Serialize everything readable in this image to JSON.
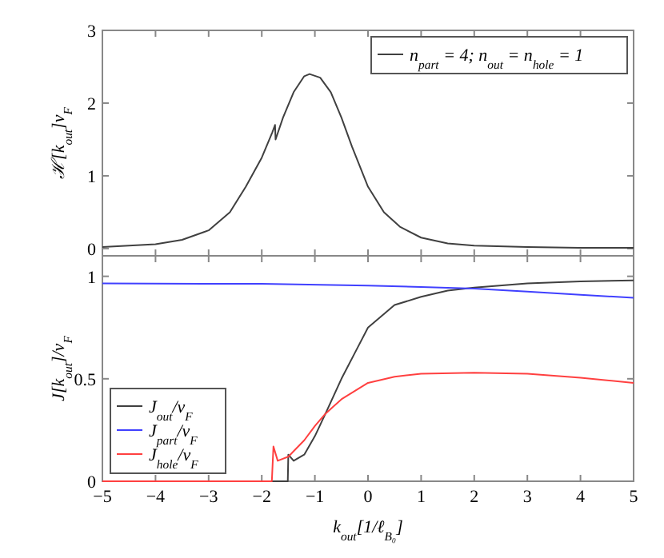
{
  "chart_data": [
    {
      "type": "line",
      "ylabel": "ℋ[k$_{out}$]v$_{F}$",
      "xlim": [
        -5,
        5
      ],
      "xticks": [
        -5,
        -4,
        -3,
        -2,
        -1,
        0,
        1,
        2,
        3,
        4,
        5
      ],
      "ylim": [
        -0.1,
        3
      ],
      "yticks": [
        0,
        1,
        2,
        3
      ],
      "tick_labels": "y",
      "legend": "top right",
      "grid": false,
      "series": [
        {
          "name": "n$_{part}$ = 4; n$_{out}$ = n$_{hole}$ = 1",
          "color": "#404040",
          "x": [
            -5,
            -4,
            -3.5,
            -3,
            -2.6,
            -2.3,
            -2,
            -1.8,
            -1.75,
            -1.74,
            -1.6,
            -1.4,
            -1.2,
            -1.1,
            -0.9,
            -0.7,
            -0.5,
            -0.3,
            0,
            0.3,
            0.6,
            1,
            1.5,
            2,
            3,
            4,
            5
          ],
          "values": [
            0.02,
            0.06,
            0.12,
            0.25,
            0.5,
            0.85,
            1.25,
            1.6,
            1.7,
            1.5,
            1.8,
            2.15,
            2.37,
            2.4,
            2.35,
            2.15,
            1.8,
            1.4,
            0.85,
            0.5,
            0.3,
            0.15,
            0.07,
            0.04,
            0.02,
            0.01,
            0.01
          ]
        }
      ]
    },
    {
      "type": "line",
      "xlabel": "k$_{out}$[1/ℓ$_{B₀}$]",
      "ylabel": "J[k$_{out}$]/v$_{F}$",
      "xlim": [
        -5,
        5
      ],
      "xticks": [
        -5,
        -4,
        -3,
        -2,
        -1,
        0,
        1,
        2,
        3,
        4,
        5
      ],
      "ylim": [
        0,
        1.1
      ],
      "yticks": [
        0,
        0.5,
        1
      ],
      "legend": "bottom left",
      "grid": false,
      "series": [
        {
          "name": "J$_{out}$/v$_{F}$",
          "color": "#404040",
          "x": [
            -5,
            -1.51,
            -1.5,
            -1.4,
            -1.2,
            -1,
            -0.8,
            -0.5,
            -0.2,
            0,
            0.5,
            1,
            1.5,
            2,
            3,
            4,
            5
          ],
          "values": [
            0,
            0,
            0.13,
            0.1,
            0.13,
            0.22,
            0.33,
            0.5,
            0.65,
            0.75,
            0.86,
            0.9,
            0.93,
            0.945,
            0.965,
            0.975,
            0.98
          ]
        },
        {
          "name": "J$_{part}$/v$_{F}$",
          "color": "#4040ff",
          "x": [
            -5,
            -2,
            0,
            1,
            2,
            3,
            4,
            5
          ],
          "values": [
            0.965,
            0.963,
            0.955,
            0.948,
            0.94,
            0.925,
            0.91,
            0.895
          ]
        },
        {
          "name": "J$_{hole}$/v$_{F}$",
          "color": "#ff4040",
          "x": [
            -5,
            -1.81,
            -1.78,
            -1.7,
            -1.5,
            -1.2,
            -1,
            -0.8,
            -0.5,
            0,
            0.5,
            1,
            2,
            3,
            4,
            5
          ],
          "values": [
            0,
            0,
            0.17,
            0.1,
            0.12,
            0.2,
            0.27,
            0.33,
            0.4,
            0.48,
            0.51,
            0.525,
            0.53,
            0.525,
            0.505,
            0.48
          ]
        }
      ]
    }
  ]
}
